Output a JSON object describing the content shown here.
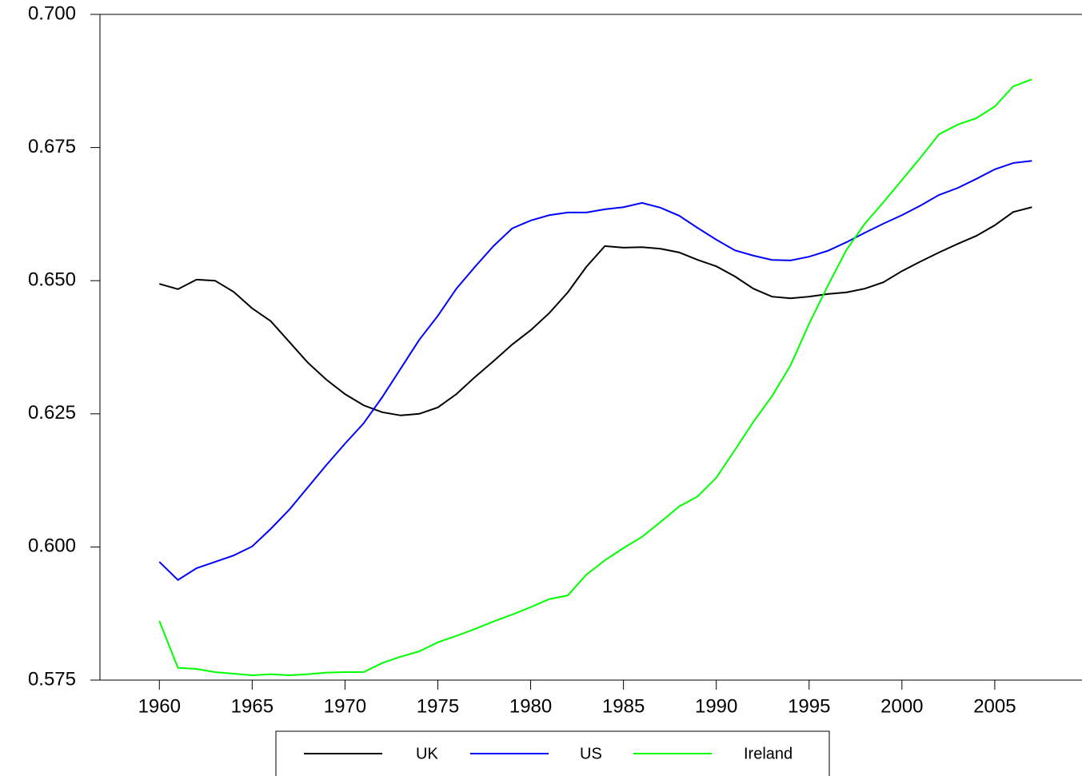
{
  "chart_data": {
    "type": "line",
    "x": [
      1960,
      1961,
      1962,
      1963,
      1964,
      1965,
      1966,
      1967,
      1968,
      1969,
      1970,
      1971,
      1972,
      1973,
      1974,
      1975,
      1976,
      1977,
      1978,
      1979,
      1980,
      1981,
      1982,
      1983,
      1984,
      1985,
      1986,
      1987,
      1988,
      1989,
      1990,
      1991,
      1992,
      1993,
      1994,
      1995,
      1996,
      1997,
      1998,
      1999,
      2000,
      2001,
      2002,
      2003,
      2004,
      2005,
      2006,
      2007
    ],
    "series": [
      {
        "name": "UK",
        "color": "#000000",
        "values": [
          0.6494,
          0.6484,
          0.6502,
          0.65,
          0.6479,
          0.6448,
          0.6424,
          0.6385,
          0.6346,
          0.6314,
          0.6287,
          0.6266,
          0.6253,
          0.6247,
          0.625,
          0.6262,
          0.6287,
          0.6319,
          0.6349,
          0.638,
          0.6407,
          0.6439,
          0.6478,
          0.6526,
          0.6565,
          0.6562,
          0.6563,
          0.656,
          0.6553,
          0.6539,
          0.6527,
          0.6508,
          0.6485,
          0.647,
          0.6467,
          0.647,
          0.6475,
          0.6478,
          0.6485,
          0.6497,
          0.6518,
          0.6536,
          0.6553,
          0.6569,
          0.6584,
          0.6604,
          0.6629,
          0.6638
        ]
      },
      {
        "name": "US",
        "color": "#0000ff",
        "values": [
          0.5972,
          0.5938,
          0.596,
          0.5972,
          0.5984,
          0.6001,
          0.6034,
          0.607,
          0.6112,
          0.6154,
          0.6194,
          0.6232,
          0.6281,
          0.6335,
          0.6389,
          0.6434,
          0.6485,
          0.6526,
          0.6565,
          0.6598,
          0.6613,
          0.6623,
          0.6628,
          0.6628,
          0.6634,
          0.6638,
          0.6646,
          0.6637,
          0.6622,
          0.6599,
          0.6577,
          0.6557,
          0.6547,
          0.6539,
          0.6538,
          0.6545,
          0.6556,
          0.6572,
          0.659,
          0.6607,
          0.6623,
          0.6641,
          0.6661,
          0.6674,
          0.6691,
          0.6709,
          0.6721,
          0.6725
        ]
      },
      {
        "name": "Ireland",
        "color": "#00ff00",
        "values": [
          0.5861,
          0.5773,
          0.5771,
          0.5765,
          0.5762,
          0.5759,
          0.5761,
          0.5759,
          0.5761,
          0.5764,
          0.5765,
          0.5765,
          0.5782,
          0.5794,
          0.5804,
          0.5821,
          0.5833,
          0.5846,
          0.586,
          0.5873,
          0.5887,
          0.5902,
          0.5909,
          0.5948,
          0.5975,
          0.5998,
          0.6019,
          0.6047,
          0.6076,
          0.6095,
          0.613,
          0.6182,
          0.6235,
          0.6283,
          0.6341,
          0.6419,
          0.649,
          0.6557,
          0.6607,
          0.6647,
          0.6689,
          0.6731,
          0.6775,
          0.6793,
          0.6805,
          0.6827,
          0.6865,
          0.6878
        ]
      }
    ],
    "xlim": [
      1956.8,
      2009.7
    ],
    "xticks": [
      1960,
      1965,
      1970,
      1975,
      1980,
      1985,
      1990,
      1995,
      2000,
      2005
    ],
    "ylim": [
      0.575,
      0.7
    ],
    "yticks": [
      {
        "value": 0.575,
        "label": "0.575"
      },
      {
        "value": 0.6,
        "label": "0.600"
      },
      {
        "value": 0.625,
        "label": "0.625"
      },
      {
        "value": 0.65,
        "label": "0.650"
      },
      {
        "value": 0.675,
        "label": "0.675"
      },
      {
        "value": 0.7,
        "label": "0.700"
      }
    ],
    "grid": false,
    "legend": "bottom"
  }
}
